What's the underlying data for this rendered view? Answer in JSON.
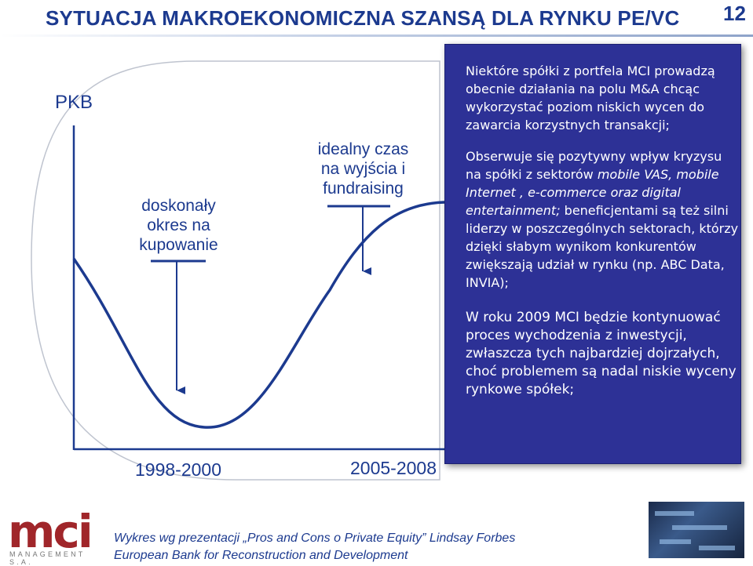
{
  "slide": {
    "title": "SYTUACJA MAKROEKONOMICZNA SZANSĄ DLA RYNKU PE/VC",
    "page_number": "12"
  },
  "diagram": {
    "y_axis_label": "PKB",
    "buy_label": "doskonały okres na kupowanie",
    "exit_label": "idealny czas na wyjścia i fundraising",
    "year_left": "1998-2000",
    "year_right": "2005-2008"
  },
  "panel": {
    "paragraph1": "Niektóre spółki  z portfela MCI prowadzą obecnie działania na polu M&A chcąc wykorzystać  poziom niskich wycen do zawarcia korzystnych transakcji;",
    "paragraph2_a": "Obserwuje się  pozytywny wpływ kryzysu na spółki z sektorów ",
    "paragraph2_em1": "mobile VAS, mobile Internet , e-commerce oraz digital entertainment;",
    "paragraph2_b": " beneficjentami są też silni liderzy w poszczególnych sektorach, którzy dzięki słabym wynikom konkurentów zwiększają udział w rynku (np. ABC  Data, INVIA);",
    "paragraph3": "W roku 2009 MCI będzie kontynuować proces wychodzenia z inwestycji, zwłaszcza tych najbardziej dojrzałych, choć problemem są nadal niskie wyceny rynkowe spółek;"
  },
  "footer": {
    "logo_text": "mci",
    "logo_sub": "MANAGEMENT S.A.",
    "credit_line1": "Wykres wg prezentacji „Pros and Cons o Private Equity” Lindsay Forbes",
    "credit_line2": "European Bank for Reconstruction and Development"
  },
  "colors": {
    "title_blue": "#1c3a8f",
    "panel_bg": "#2d3196",
    "logo_red": "#a0262a"
  }
}
